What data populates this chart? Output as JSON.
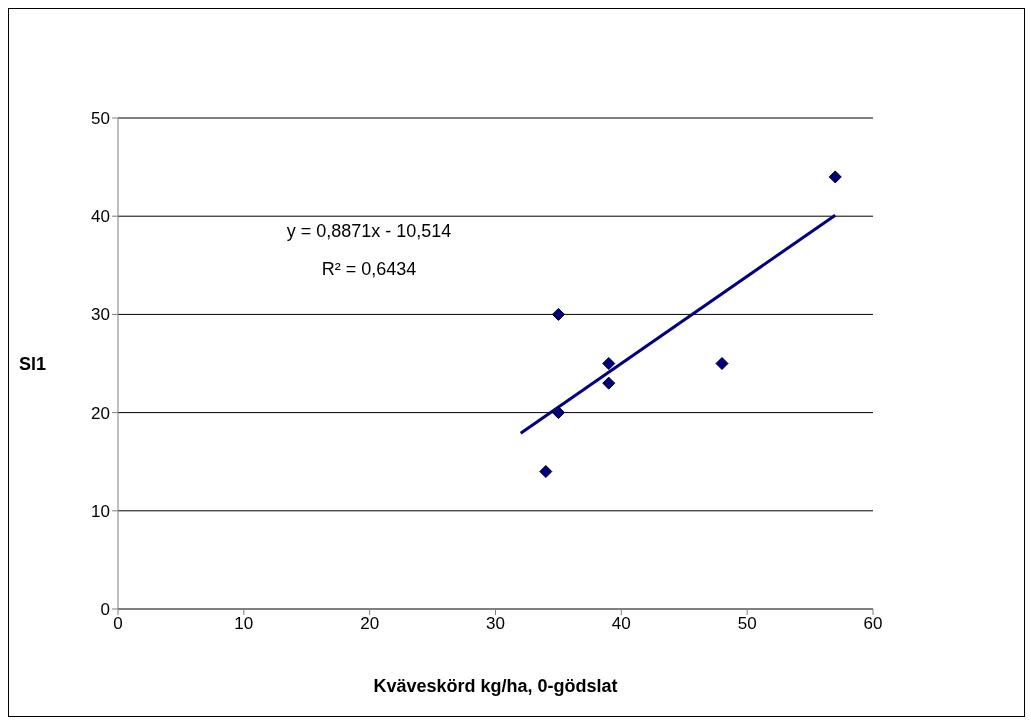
{
  "chart_data": {
    "type": "scatter",
    "xlabel": "Kväveskörd kg/ha, 0-gödslat",
    "ylabel": "Sl1",
    "xlim": [
      0,
      60
    ],
    "xticks": [
      0,
      10,
      20,
      30,
      40,
      50,
      60
    ],
    "ylim": [
      0,
      50
    ],
    "yticks": [
      0,
      10,
      20,
      30,
      40,
      50
    ],
    "grid": "y",
    "marker": "diamond",
    "series": [
      {
        "color": "#000080",
        "x": [
          34,
          35,
          35,
          39,
          39,
          48,
          57
        ],
        "values": [
          14,
          20,
          30,
          25,
          23,
          25,
          44
        ]
      },
      {
        "type": "line",
        "color": "#000080",
        "line_style": "solid",
        "marker": "none",
        "x": [
          32,
          57
        ],
        "values": [
          17.9,
          40.1
        ]
      }
    ],
    "annotations": [
      "y = 0,8871x - 10,514",
      "R² = 0,6434"
    ]
  }
}
